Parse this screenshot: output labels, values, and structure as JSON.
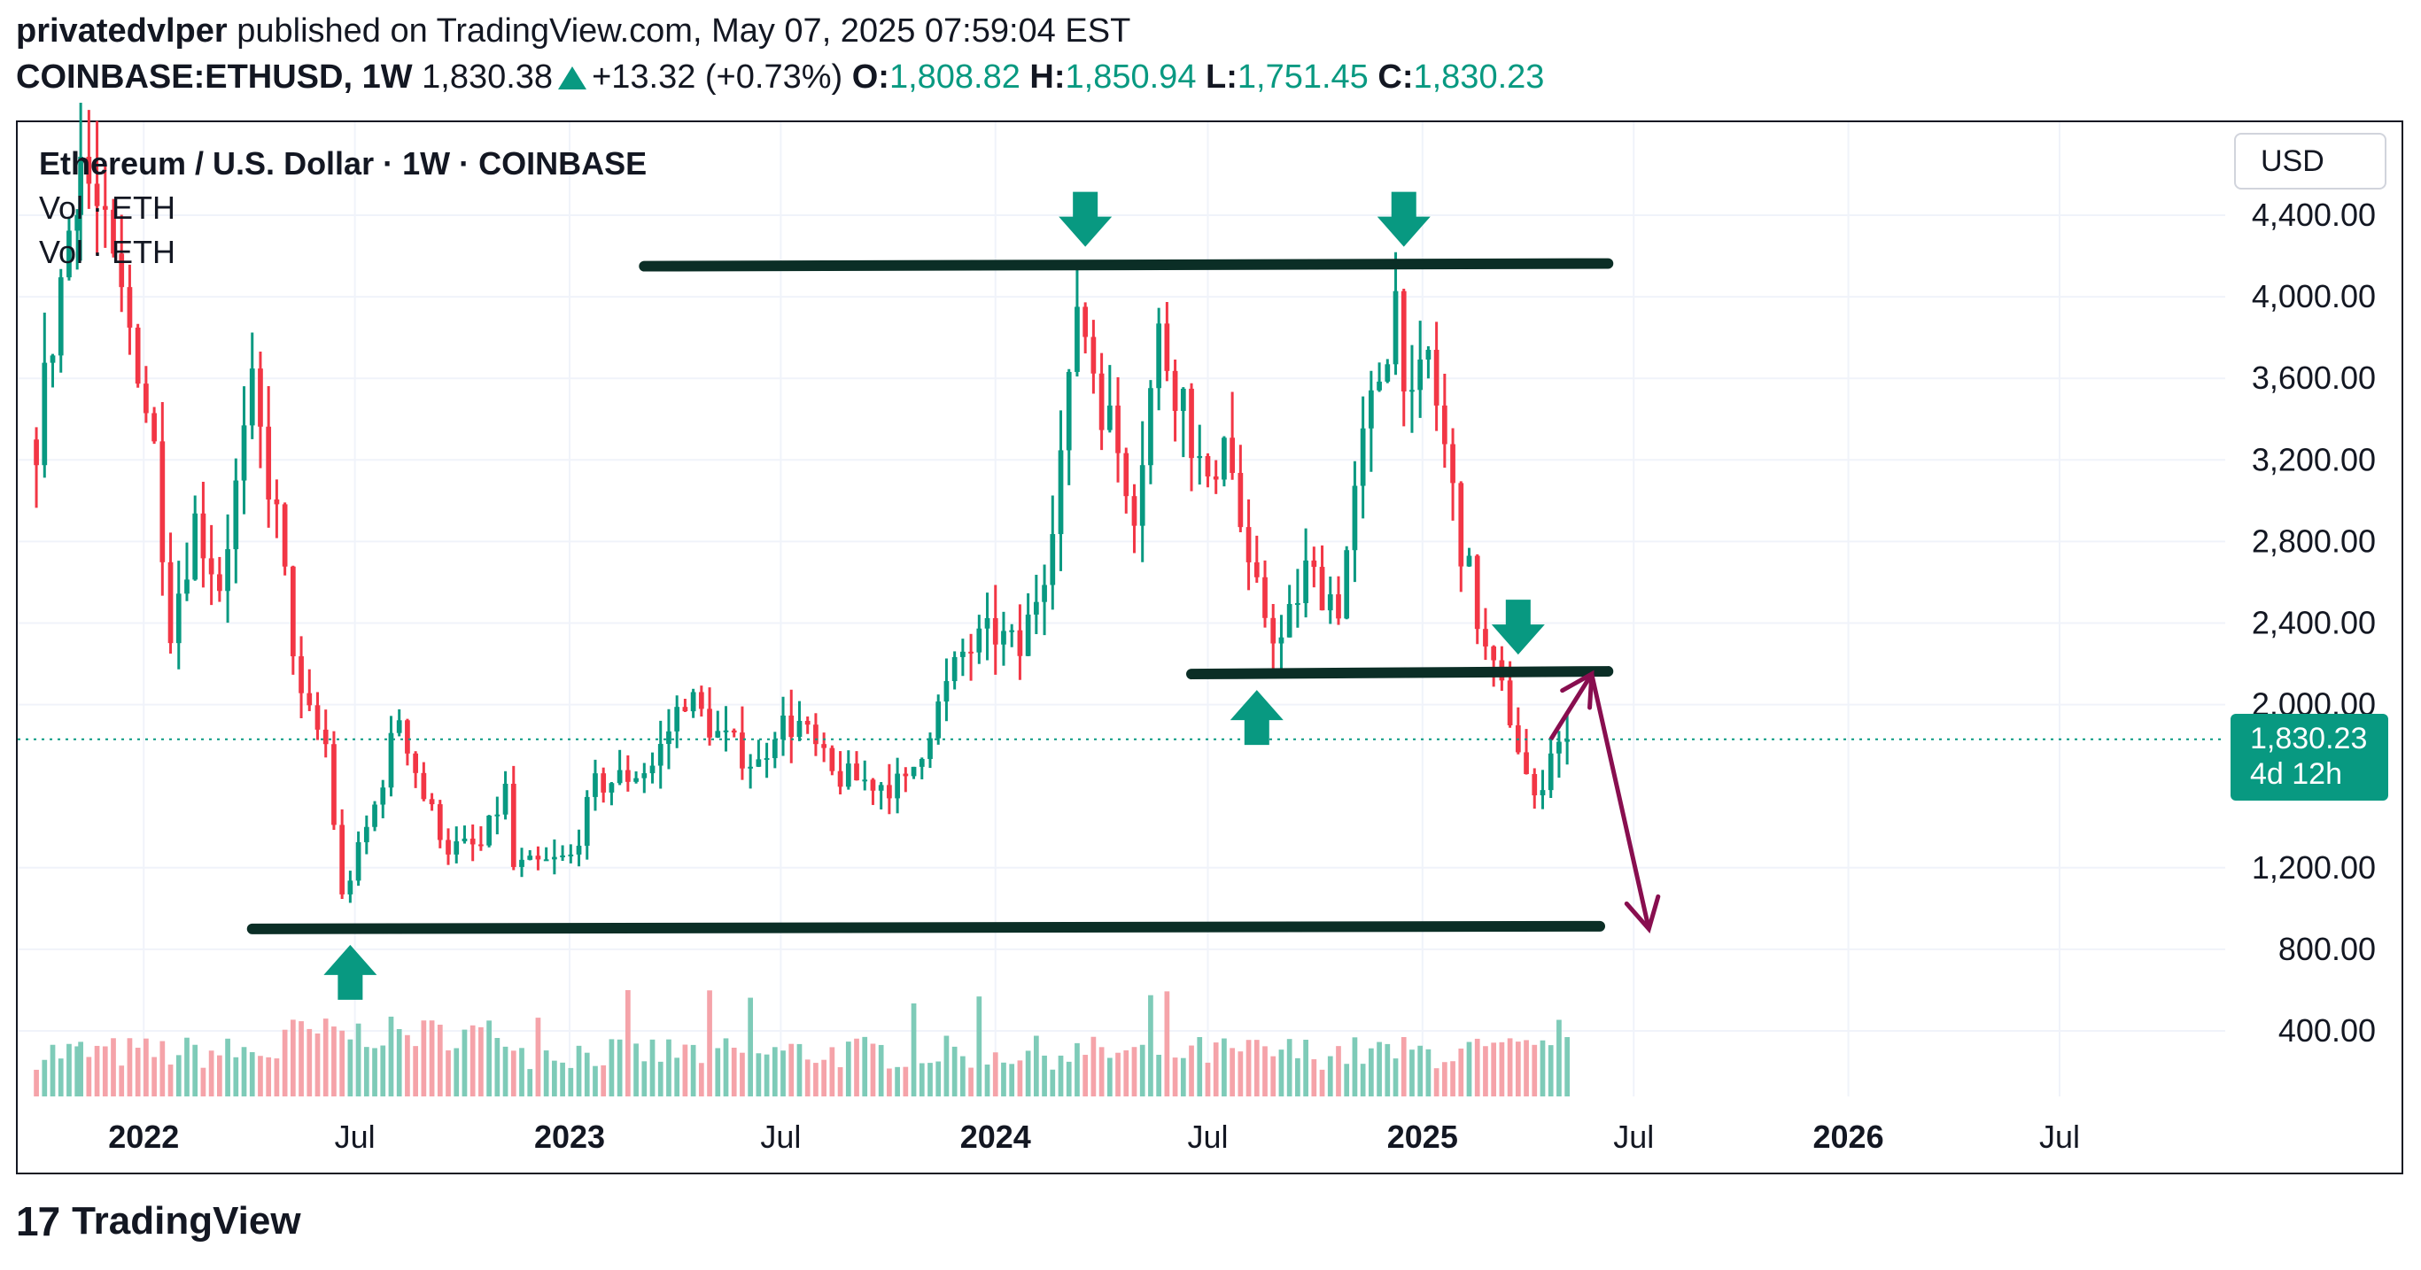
{
  "header": {
    "author": "privatedvlper",
    "published_text": "published on TradingView.com, May 07, 2025 07:59:04 EST",
    "symbol": "COINBASE:ETHUSD, 1W",
    "last": "1,830.38",
    "change": "+13.32 (+0.73%)",
    "o_label": "O:",
    "o_value": "1,808.82",
    "h_label": "H:",
    "h_value": "1,850.94",
    "l_label": "L:",
    "l_value": "1,751.45",
    "c_label": "C:",
    "c_value": "1,830.23"
  },
  "legend": {
    "title": "Ethereum / U.S. Dollar · 1W · COINBASE",
    "vol1": "Vol · ETH",
    "vol2": "Vol · ETH"
  },
  "price_axis": {
    "currency": "USD",
    "current_price": "1,830.23",
    "countdown": "4d 12h"
  },
  "footer": {
    "logo": "17",
    "brand": "TradingView"
  },
  "colors": {
    "up": "#089981",
    "down": "#f23645",
    "vol_up": "#7ecbb8",
    "vol_down": "#f5a3a9",
    "lines": "#0b2e26",
    "projection": "#880e4f"
  },
  "chart_data": {
    "type": "candlestick",
    "interval": "1W",
    "ylim": [
      0,
      4600
    ],
    "y_ticks": [
      400,
      800,
      1200,
      2000,
      2400,
      2800,
      3200,
      3600,
      4000,
      4400
    ],
    "y_tick_labels": [
      "400.00",
      "800.00",
      "1,200.00",
      "2,000.00",
      "2,400.00",
      "2,800.00",
      "3,200.00",
      "3,600.00",
      "4,000.00",
      "4,400.00"
    ],
    "x_ticks": [
      {
        "label": "2022",
        "date": "2022-01-01",
        "bold": true
      },
      {
        "label": "Jul",
        "date": "2022-07-01",
        "bold": false
      },
      {
        "label": "2023",
        "date": "2023-01-01",
        "bold": true
      },
      {
        "label": "Jul",
        "date": "2023-07-01",
        "bold": false
      },
      {
        "label": "2024",
        "date": "2024-01-01",
        "bold": true
      },
      {
        "label": "Jul",
        "date": "2024-07-01",
        "bold": false
      },
      {
        "label": "2025",
        "date": "2025-01-01",
        "bold": true
      },
      {
        "label": "Jul",
        "date": "2025-07-01",
        "bold": false
      },
      {
        "label": "2026",
        "date": "2026-01-01",
        "bold": true
      },
      {
        "label": "Jul",
        "date": "2026-07-01",
        "bold": false
      }
    ],
    "x_range": [
      "2021-09-15",
      "2026-11-20"
    ],
    "current_price": 1830.23,
    "close_path": [
      [
        "2021-10-01",
        3300
      ],
      [
        "2021-11-08",
        4700
      ],
      [
        "2021-12-06",
        4100
      ],
      [
        "2021-12-27",
        3700
      ],
      [
        "2022-01-10",
        3250
      ],
      [
        "2022-01-24",
        2400
      ],
      [
        "2022-02-14",
        2900
      ],
      [
        "2022-03-07",
        2600
      ],
      [
        "2022-04-04",
        3500
      ],
      [
        "2022-04-25",
        2900
      ],
      [
        "2022-05-16",
        2000
      ],
      [
        "2022-06-06",
        1800
      ],
      [
        "2022-06-20",
        1050
      ],
      [
        "2022-07-18",
        1500
      ],
      [
        "2022-08-08",
        1950
      ],
      [
        "2022-08-29",
        1550
      ],
      [
        "2022-09-19",
        1300
      ],
      [
        "2022-10-17",
        1300
      ],
      [
        "2022-11-07",
        1580
      ],
      [
        "2022-11-14",
        1200
      ],
      [
        "2022-12-12",
        1220
      ],
      [
        "2023-01-02",
        1250
      ],
      [
        "2023-01-23",
        1600
      ],
      [
        "2023-02-20",
        1650
      ],
      [
        "2023-03-13",
        1700
      ],
      [
        "2023-04-10",
        2050
      ],
      [
        "2023-05-08",
        1850
      ],
      [
        "2023-06-12",
        1700
      ],
      [
        "2023-06-26",
        1900
      ],
      [
        "2023-07-17",
        1900
      ],
      [
        "2023-08-14",
        1650
      ],
      [
        "2023-09-18",
        1620
      ],
      [
        "2023-10-16",
        1600
      ],
      [
        "2023-11-06",
        1900
      ],
      [
        "2023-12-04",
        2250
      ],
      [
        "2024-01-01",
        2350
      ],
      [
        "2024-01-22",
        2250
      ],
      [
        "2024-02-12",
        2700
      ],
      [
        "2024-03-04",
        3500
      ],
      [
        "2024-03-11",
        4000
      ],
      [
        "2024-04-01",
        3500
      ],
      [
        "2024-04-29",
        3000
      ],
      [
        "2024-05-20",
        3800
      ],
      [
        "2024-06-10",
        3500
      ],
      [
        "2024-07-01",
        3000
      ],
      [
        "2024-07-15",
        3400
      ],
      [
        "2024-08-05",
        2600
      ],
      [
        "2024-09-02",
        2300
      ],
      [
        "2024-09-23",
        2650
      ],
      [
        "2024-10-21",
        2500
      ],
      [
        "2024-11-11",
        3250
      ],
      [
        "2024-12-09",
        4000
      ],
      [
        "2024-12-23",
        3400
      ],
      [
        "2025-01-06",
        3700
      ],
      [
        "2025-02-03",
        2800
      ],
      [
        "2025-02-24",
        2250
      ],
      [
        "2025-03-17",
        1950
      ],
      [
        "2025-04-07",
        1500
      ],
      [
        "2025-04-21",
        1800
      ],
      [
        "2025-05-05",
        1830
      ]
    ],
    "annotations": {
      "resistance": {
        "price": 4150,
        "from": "2023-03-06",
        "to": "2025-06-09"
      },
      "support_mid": {
        "price": 2150,
        "from": "2024-06-17",
        "to": "2025-06-09"
      },
      "support_low": {
        "price": 900,
        "from": "2022-04-04",
        "to": "2025-06-02"
      },
      "arrows_down": [
        {
          "date": "2024-03-18",
          "price": 4150
        },
        {
          "date": "2024-12-16",
          "price": 4150
        },
        {
          "date": "2025-03-24",
          "price": 2150
        }
      ],
      "arrows_up": [
        {
          "date": "2024-08-12",
          "price": 2150
        },
        {
          "date": "2022-06-27",
          "price": 900
        }
      ],
      "projection": [
        [
          "2025-04-21",
          1830
        ],
        [
          "2025-05-26",
          2150
        ],
        [
          "2025-07-14",
          900
        ]
      ]
    }
  }
}
